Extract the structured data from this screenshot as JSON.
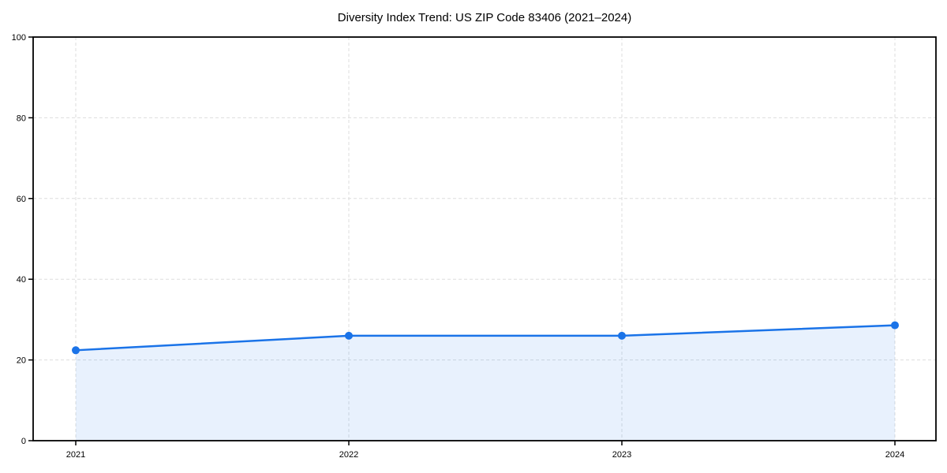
{
  "chart_data": {
    "type": "area",
    "title": "Diversity Index Trend: US ZIP Code 83406 (2021–2024)",
    "x": [
      "2021",
      "2022",
      "2023",
      "2024"
    ],
    "values": [
      22.4,
      26.0,
      26.0,
      28.6
    ],
    "x_tick_labels": [
      "2021",
      "2022",
      "2023",
      "2024"
    ],
    "y_ticks": [
      0,
      20,
      40,
      60,
      80,
      100
    ],
    "y_tick_labels": [
      "0",
      "20",
      "40",
      "60",
      "80",
      "100"
    ],
    "ylim": [
      0,
      100
    ],
    "xlabel": "",
    "ylabel": "",
    "grid": true,
    "grid_style": "dashed",
    "legend": "none",
    "colors": {
      "line": "#1a73e8",
      "marker": "#1a73e8",
      "fill": "#1a73e8",
      "fill_opacity": 0.1,
      "grid": "#dddddd",
      "spine": "#000000",
      "text": "#000000",
      "background": "#ffffff"
    }
  }
}
